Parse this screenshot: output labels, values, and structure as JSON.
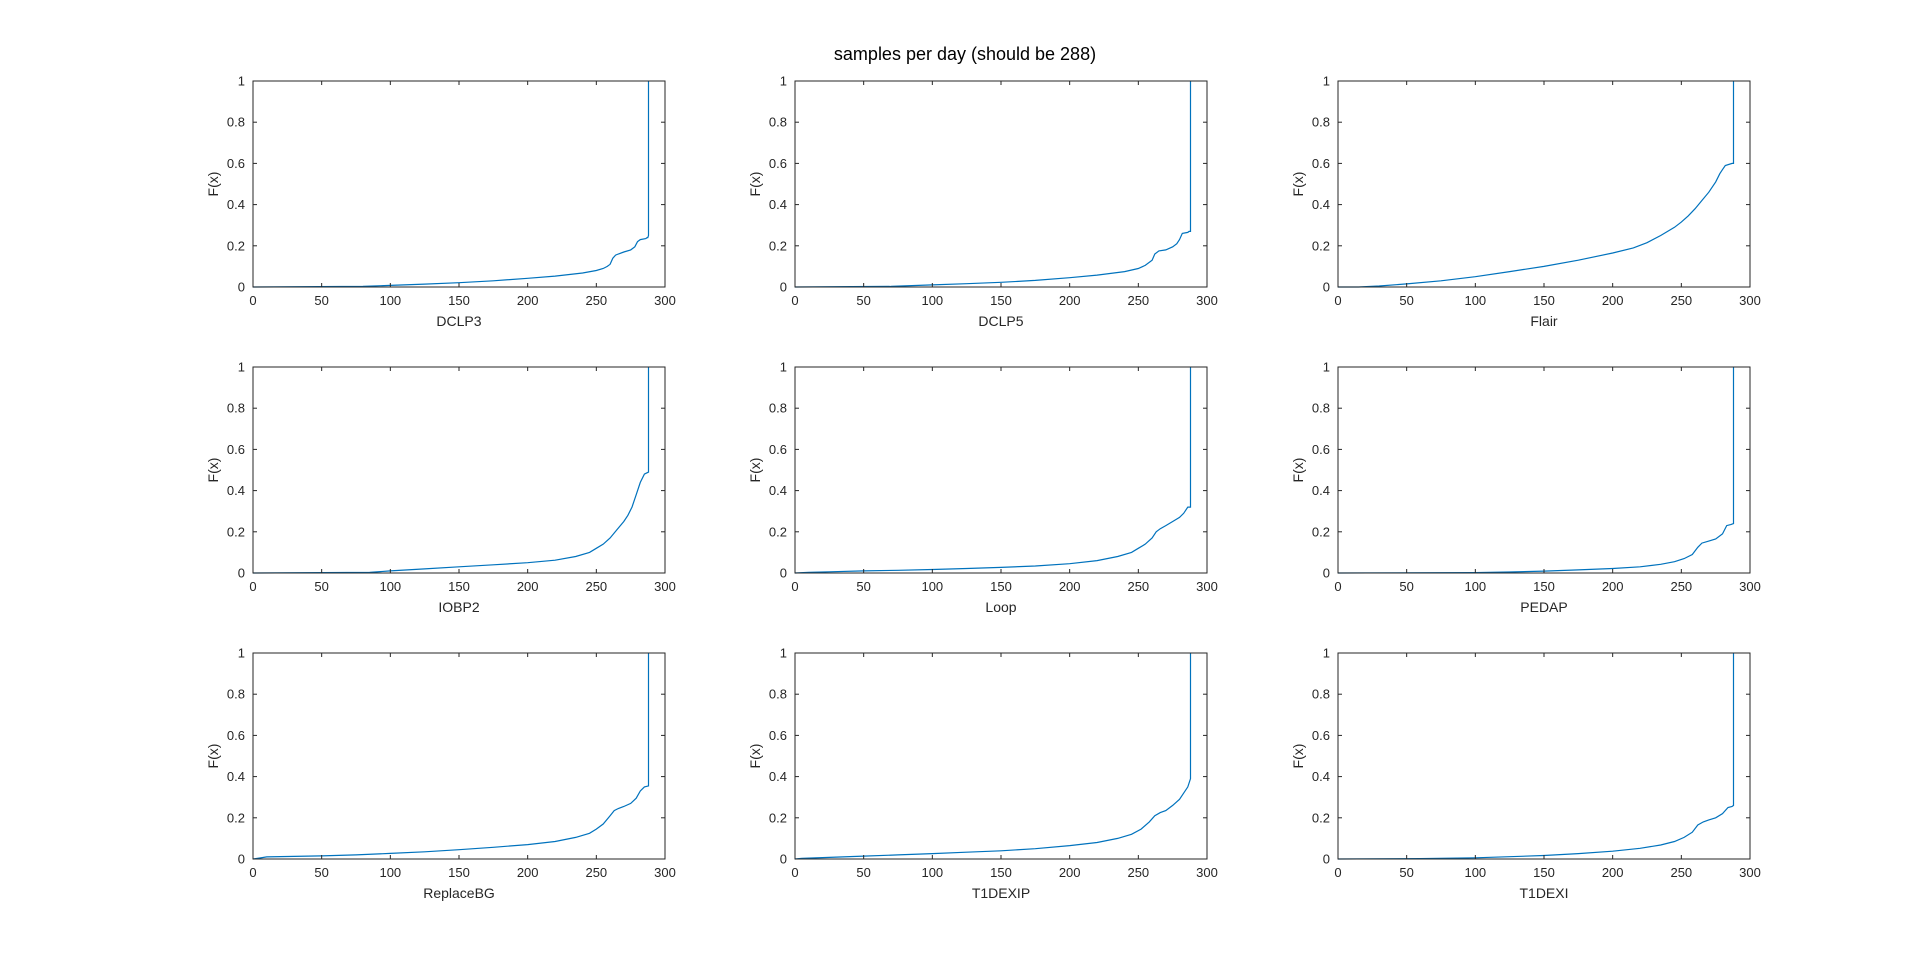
{
  "figure": {
    "title": "samples per day (should be 288)"
  },
  "chart_data": [
    {
      "type": "line",
      "xlabel": "DCLP3",
      "ylabel": "F(x)",
      "xlim": [
        0,
        300
      ],
      "ylim": [
        0,
        1
      ],
      "xticks": [
        "0",
        "50",
        "100",
        "150",
        "200",
        "250",
        "300"
      ],
      "yticks": [
        "0",
        "0.2",
        "0.4",
        "0.6",
        "0.8",
        "1"
      ],
      "series": [
        {
          "x": [
            0,
            80,
            100,
            125,
            150,
            175,
            200,
            220,
            240,
            250,
            255,
            258,
            260,
            262,
            264,
            266,
            270,
            275,
            278,
            280,
            282,
            286,
            287,
            287.5,
            288,
            288
          ],
          "y": [
            0,
            0.003,
            0.008,
            0.014,
            0.021,
            0.03,
            0.042,
            0.053,
            0.068,
            0.08,
            0.09,
            0.1,
            0.11,
            0.14,
            0.155,
            0.16,
            0.17,
            0.18,
            0.195,
            0.22,
            0.23,
            0.235,
            0.24,
            0.24,
            0.25,
            1.0
          ]
        }
      ]
    },
    {
      "type": "line",
      "xlabel": "DCLP5",
      "ylabel": "F(x)",
      "xlim": [
        0,
        300
      ],
      "ylim": [
        0,
        1
      ],
      "xticks": [
        "0",
        "50",
        "100",
        "150",
        "200",
        "250",
        "300"
      ],
      "yticks": [
        "0",
        "0.2",
        "0.4",
        "0.6",
        "0.8",
        "1"
      ],
      "series": [
        {
          "x": [
            0,
            70,
            100,
            125,
            150,
            175,
            200,
            220,
            240,
            250,
            255,
            260,
            262,
            265,
            270,
            275,
            278,
            280,
            282,
            286,
            287,
            288,
            288
          ],
          "y": [
            0,
            0.003,
            0.01,
            0.016,
            0.023,
            0.032,
            0.045,
            0.058,
            0.075,
            0.09,
            0.105,
            0.13,
            0.16,
            0.175,
            0.18,
            0.195,
            0.21,
            0.23,
            0.26,
            0.265,
            0.27,
            0.27,
            1.0
          ]
        }
      ]
    },
    {
      "type": "line",
      "xlabel": "Flair",
      "ylabel": "F(x)",
      "xlim": [
        0,
        300
      ],
      "ylim": [
        0,
        1
      ],
      "xticks": [
        "0",
        "50",
        "100",
        "150",
        "200",
        "250",
        "300"
      ],
      "yticks": [
        "0",
        "0.2",
        "0.4",
        "0.6",
        "0.8",
        "1"
      ],
      "series": [
        {
          "x": [
            0,
            15,
            30,
            50,
            75,
            100,
            125,
            150,
            175,
            200,
            215,
            225,
            235,
            245,
            250,
            255,
            260,
            265,
            270,
            275,
            278,
            280,
            282,
            287,
            288,
            288
          ],
          "y": [
            0,
            0.0,
            0.005,
            0.015,
            0.03,
            0.05,
            0.075,
            0.1,
            0.13,
            0.165,
            0.19,
            0.215,
            0.25,
            0.29,
            0.315,
            0.345,
            0.38,
            0.42,
            0.46,
            0.51,
            0.55,
            0.57,
            0.59,
            0.6,
            0.6,
            1.0
          ]
        }
      ]
    },
    {
      "type": "line",
      "xlabel": "IOBP2",
      "ylabel": "F(x)",
      "xlim": [
        0,
        300
      ],
      "ylim": [
        0,
        1
      ],
      "xticks": [
        "0",
        "50",
        "100",
        "150",
        "200",
        "250",
        "300"
      ],
      "yticks": [
        "0",
        "0.2",
        "0.4",
        "0.6",
        "0.8",
        "1"
      ],
      "series": [
        {
          "x": [
            0,
            85,
            100,
            125,
            150,
            175,
            200,
            220,
            235,
            245,
            250,
            255,
            260,
            265,
            270,
            273,
            276,
            279,
            282,
            285,
            288,
            288
          ],
          "y": [
            0,
            0.003,
            0.01,
            0.02,
            0.03,
            0.04,
            0.05,
            0.062,
            0.08,
            0.1,
            0.12,
            0.14,
            0.17,
            0.21,
            0.25,
            0.28,
            0.32,
            0.38,
            0.44,
            0.48,
            0.49,
            1.0
          ]
        }
      ]
    },
    {
      "type": "line",
      "xlabel": "Loop",
      "ylabel": "F(x)",
      "xlim": [
        0,
        300
      ],
      "ylim": [
        0,
        1
      ],
      "xticks": [
        "0",
        "50",
        "100",
        "150",
        "200",
        "250",
        "300"
      ],
      "yticks": [
        "0",
        "0.2",
        "0.4",
        "0.6",
        "0.8",
        "1"
      ],
      "series": [
        {
          "x": [
            0,
            10,
            25,
            50,
            75,
            100,
            125,
            150,
            175,
            200,
            220,
            235,
            245,
            250,
            255,
            260,
            263,
            266,
            270,
            275,
            280,
            283,
            286,
            288,
            288
          ],
          "y": [
            0,
            0.003,
            0.006,
            0.01,
            0.013,
            0.017,
            0.022,
            0.027,
            0.034,
            0.045,
            0.06,
            0.08,
            0.1,
            0.12,
            0.14,
            0.17,
            0.2,
            0.215,
            0.23,
            0.25,
            0.27,
            0.29,
            0.32,
            0.32,
            1.0
          ]
        }
      ]
    },
    {
      "type": "line",
      "xlabel": "PEDAP",
      "ylabel": "F(x)",
      "xlim": [
        0,
        300
      ],
      "ylim": [
        0,
        1
      ],
      "xticks": [
        "0",
        "50",
        "100",
        "150",
        "200",
        "250",
        "300"
      ],
      "yticks": [
        "0",
        "0.2",
        "0.4",
        "0.6",
        "0.8",
        "1"
      ],
      "series": [
        {
          "x": [
            0,
            100,
            125,
            150,
            175,
            200,
            220,
            235,
            245,
            252,
            258,
            262,
            265,
            270,
            275,
            280,
            283,
            286,
            288,
            288
          ],
          "y": [
            0,
            0.002,
            0.005,
            0.009,
            0.015,
            0.022,
            0.03,
            0.042,
            0.055,
            0.07,
            0.09,
            0.125,
            0.145,
            0.155,
            0.165,
            0.19,
            0.23,
            0.235,
            0.24,
            1.0
          ]
        }
      ]
    },
    {
      "type": "line",
      "xlabel": "ReplaceBG",
      "ylabel": "F(x)",
      "xlim": [
        0,
        300
      ],
      "ylim": [
        0,
        1
      ],
      "xticks": [
        "0",
        "50",
        "100",
        "150",
        "200",
        "250",
        "300"
      ],
      "yticks": [
        "0",
        "0.2",
        "0.4",
        "0.6",
        "0.8",
        "1"
      ],
      "series": [
        {
          "x": [
            0,
            5,
            10,
            25,
            50,
            75,
            100,
            125,
            150,
            175,
            200,
            220,
            235,
            245,
            250,
            255,
            260,
            263,
            266,
            270,
            275,
            279,
            282,
            285,
            288,
            288
          ],
          "y": [
            0,
            0.005,
            0.01,
            0.012,
            0.015,
            0.02,
            0.027,
            0.035,
            0.045,
            0.057,
            0.07,
            0.085,
            0.105,
            0.125,
            0.145,
            0.17,
            0.21,
            0.235,
            0.245,
            0.255,
            0.27,
            0.295,
            0.33,
            0.35,
            0.355,
            1.0
          ]
        }
      ]
    },
    {
      "type": "line",
      "xlabel": "T1DEXIP",
      "ylabel": "F(x)",
      "xlim": [
        0,
        300
      ],
      "ylim": [
        0,
        1
      ],
      "xticks": [
        "0",
        "50",
        "100",
        "150",
        "200",
        "250",
        "300"
      ],
      "yticks": [
        "0",
        "0.2",
        "0.4",
        "0.6",
        "0.8",
        "1"
      ],
      "series": [
        {
          "x": [
            0,
            5,
            25,
            50,
            75,
            100,
            125,
            150,
            175,
            200,
            220,
            235,
            245,
            252,
            258,
            262,
            266,
            270,
            275,
            280,
            283,
            286,
            288,
            288
          ],
          "y": [
            0,
            0.003,
            0.008,
            0.014,
            0.02,
            0.026,
            0.033,
            0.04,
            0.05,
            0.065,
            0.08,
            0.1,
            0.12,
            0.145,
            0.18,
            0.21,
            0.225,
            0.235,
            0.26,
            0.29,
            0.32,
            0.35,
            0.39,
            1.0
          ]
        }
      ]
    },
    {
      "type": "line",
      "xlabel": "T1DEXI",
      "ylabel": "F(x)",
      "xlim": [
        0,
        300
      ],
      "ylim": [
        0,
        1
      ],
      "xticks": [
        "0",
        "50",
        "100",
        "150",
        "200",
        "250",
        "300"
      ],
      "yticks": [
        "0",
        "0.2",
        "0.4",
        "0.6",
        "0.8",
        "1"
      ],
      "series": [
        {
          "x": [
            0,
            60,
            100,
            125,
            150,
            175,
            200,
            220,
            235,
            245,
            252,
            258,
            262,
            266,
            270,
            275,
            280,
            284,
            287,
            288,
            288
          ],
          "y": [
            0,
            0.002,
            0.006,
            0.011,
            0.017,
            0.026,
            0.038,
            0.052,
            0.068,
            0.085,
            0.105,
            0.13,
            0.165,
            0.18,
            0.19,
            0.2,
            0.22,
            0.25,
            0.255,
            0.26,
            1.0
          ]
        }
      ]
    }
  ],
  "colors": {
    "line": "#0072BD",
    "axes": "#262626",
    "background": "#ffffff"
  }
}
